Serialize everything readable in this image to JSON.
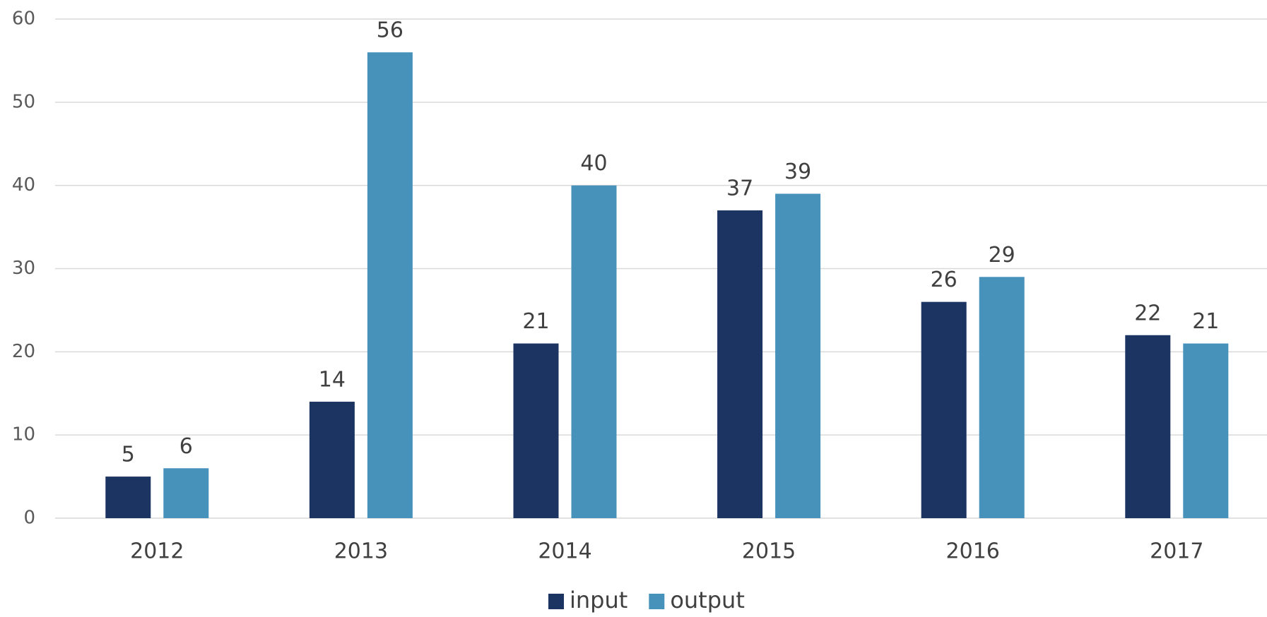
{
  "chart_data": {
    "type": "bar",
    "categories": [
      "2012",
      "2013",
      "2014",
      "2015",
      "2016",
      "2017"
    ],
    "series": [
      {
        "name": "input",
        "color": "#1b3461",
        "values": [
          5,
          14,
          21,
          37,
          26,
          22
        ]
      },
      {
        "name": "output",
        "color": "#4692bb",
        "values": [
          6,
          56,
          40,
          39,
          29,
          21
        ]
      }
    ],
    "ylim": [
      0,
      60
    ],
    "yticks": [
      0,
      10,
      20,
      30,
      40,
      50,
      60
    ],
    "grid": true,
    "legend": "bottom"
  }
}
